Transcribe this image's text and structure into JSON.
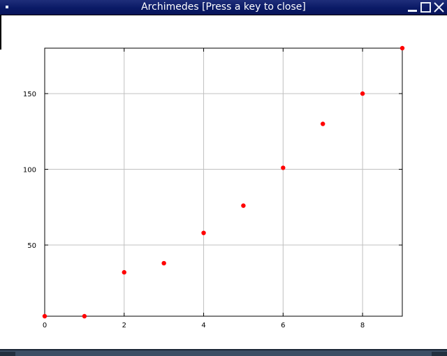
{
  "window": {
    "title": "Archimedes [Press a key to close]"
  },
  "colors": {
    "titlebar": "#0a1a66",
    "marker": "#ff0000",
    "grid": "#c0c0c0"
  },
  "chart_data": {
    "type": "scatter",
    "x": [
      0,
      1,
      2,
      3,
      4,
      5,
      6,
      7,
      8,
      9
    ],
    "y": [
      3,
      3,
      32,
      38,
      58,
      76,
      101,
      130,
      150,
      180
    ],
    "xlim": [
      0,
      9
    ],
    "ylim": [
      3,
      180
    ],
    "xticks": [
      0,
      2,
      4,
      6,
      8
    ],
    "yticks": [
      50,
      100,
      150
    ],
    "grid": true,
    "marker_color": "#ff0000",
    "title": "",
    "xlabel": "",
    "ylabel": ""
  }
}
